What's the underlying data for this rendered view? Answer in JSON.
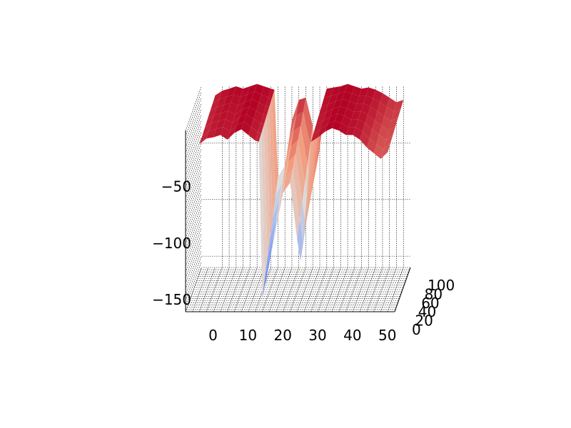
{
  "chart_data": {
    "type": "surface",
    "title": "",
    "xlabel": "",
    "ylabel": "",
    "zlabel": "",
    "colormap": "coolwarm",
    "colors": {
      "low": "#3b4cc0",
      "mid": "#dddcdb",
      "high": "#b40426"
    },
    "grid": true,
    "xlim": [
      -4,
      56
    ],
    "ylim": [
      0,
      100
    ],
    "zlim": [
      -160,
      0
    ],
    "x_tick_labels": [
      "0",
      "10",
      "20",
      "30",
      "40",
      "50"
    ],
    "y_tick_labels": [
      "0",
      "20",
      "40",
      "60",
      "80",
      "100"
    ],
    "z_tick_labels": [
      "−50",
      "−100",
      "−150"
    ],
    "x_ticks": [
      0,
      10,
      20,
      30,
      40,
      50
    ],
    "y_ticks": [
      0,
      20,
      40,
      60,
      80,
      100
    ],
    "z_ticks": [
      -50,
      -100,
      -150
    ],
    "x": [
      0,
      2,
      4,
      6,
      8,
      10,
      12,
      14,
      16,
      17,
      18,
      20,
      22,
      24,
      26,
      28,
      29,
      30,
      32,
      34,
      36,
      38,
      40,
      42,
      44,
      46,
      48,
      50,
      52,
      54
    ],
    "z_front": [
      -12,
      -7,
      -6,
      -4,
      -8,
      -2,
      1,
      -4,
      -9,
      -10,
      -148,
      -118,
      -85,
      -55,
      -46,
      -96,
      -115,
      -90,
      -10,
      -6,
      -1,
      2,
      0,
      -4,
      -4,
      -8,
      -15,
      -20,
      -25,
      -19
    ],
    "z_back": [
      -8,
      -4,
      -2,
      0,
      -2,
      0,
      2,
      0,
      -2,
      -3,
      -80,
      -70,
      -30,
      -12,
      -10,
      -35,
      -60,
      -55,
      -2,
      -1,
      0,
      2,
      0,
      -2,
      -1,
      -3,
      -6,
      -10,
      -14,
      -12
    ]
  }
}
